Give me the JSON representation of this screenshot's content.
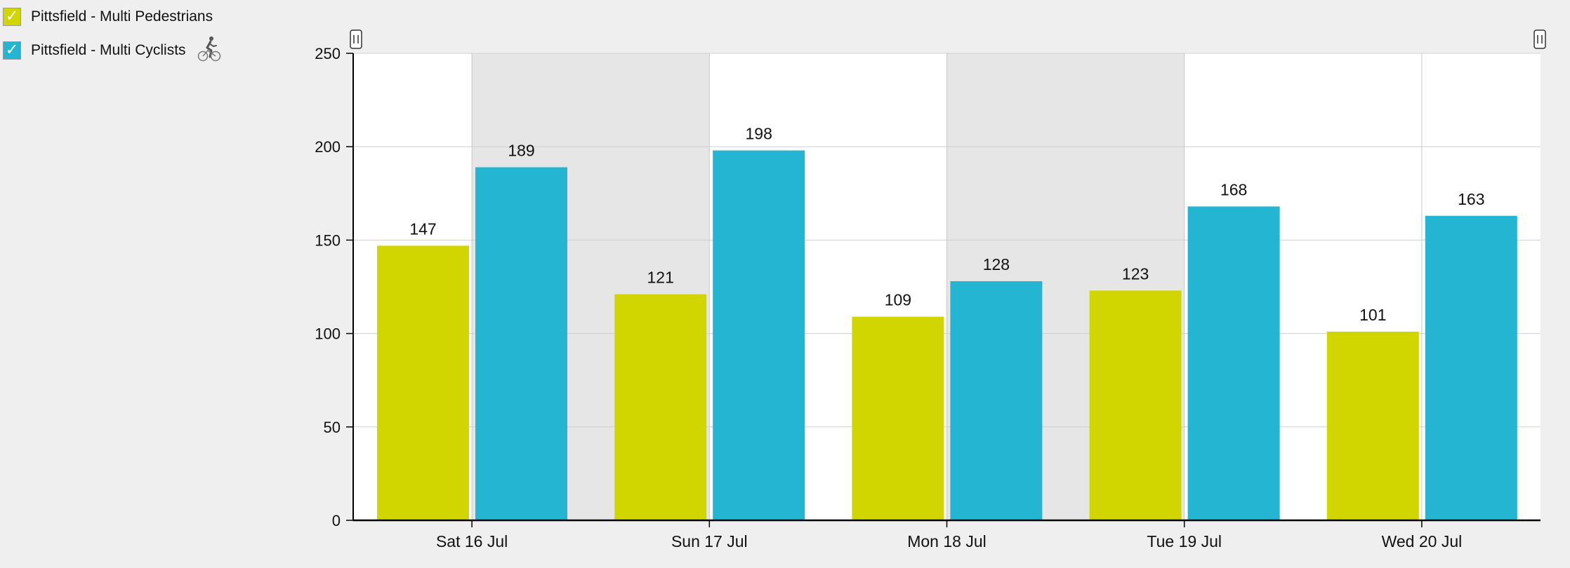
{
  "legend": {
    "items": [
      {
        "label": "Pittsfield - Multi Pedestrians",
        "checked": true,
        "color": "#d2d600",
        "icon": ""
      },
      {
        "label": "Pittsfield - Multi Cyclists",
        "checked": true,
        "color": "#23b5d2",
        "icon": "cyclist-icon"
      }
    ],
    "check_glyph": "✓"
  },
  "chart_data": {
    "type": "bar",
    "categories": [
      "Sat 16 Jul",
      "Sun 17 Jul",
      "Mon 18 Jul",
      "Tue 19 Jul",
      "Wed 20 Jul"
    ],
    "series": [
      {
        "name": "Pittsfield - Multi Pedestrians",
        "color": "#d2d600",
        "values": [
          147,
          121,
          109,
          123,
          101
        ]
      },
      {
        "name": "Pittsfield - Multi Cyclists",
        "color": "#23b5d2",
        "values": [
          189,
          198,
          128,
          168,
          163
        ]
      }
    ],
    "title": "",
    "xlabel": "",
    "ylabel": "",
    "ylim": [
      0,
      250
    ],
    "yticks": [
      0,
      50,
      100,
      150,
      200,
      250
    ],
    "grid": true,
    "data_labels": true,
    "shaded_categories": [
      1,
      3
    ],
    "shade_color": "#e6e6e6",
    "plot_background": "#ffffff"
  }
}
